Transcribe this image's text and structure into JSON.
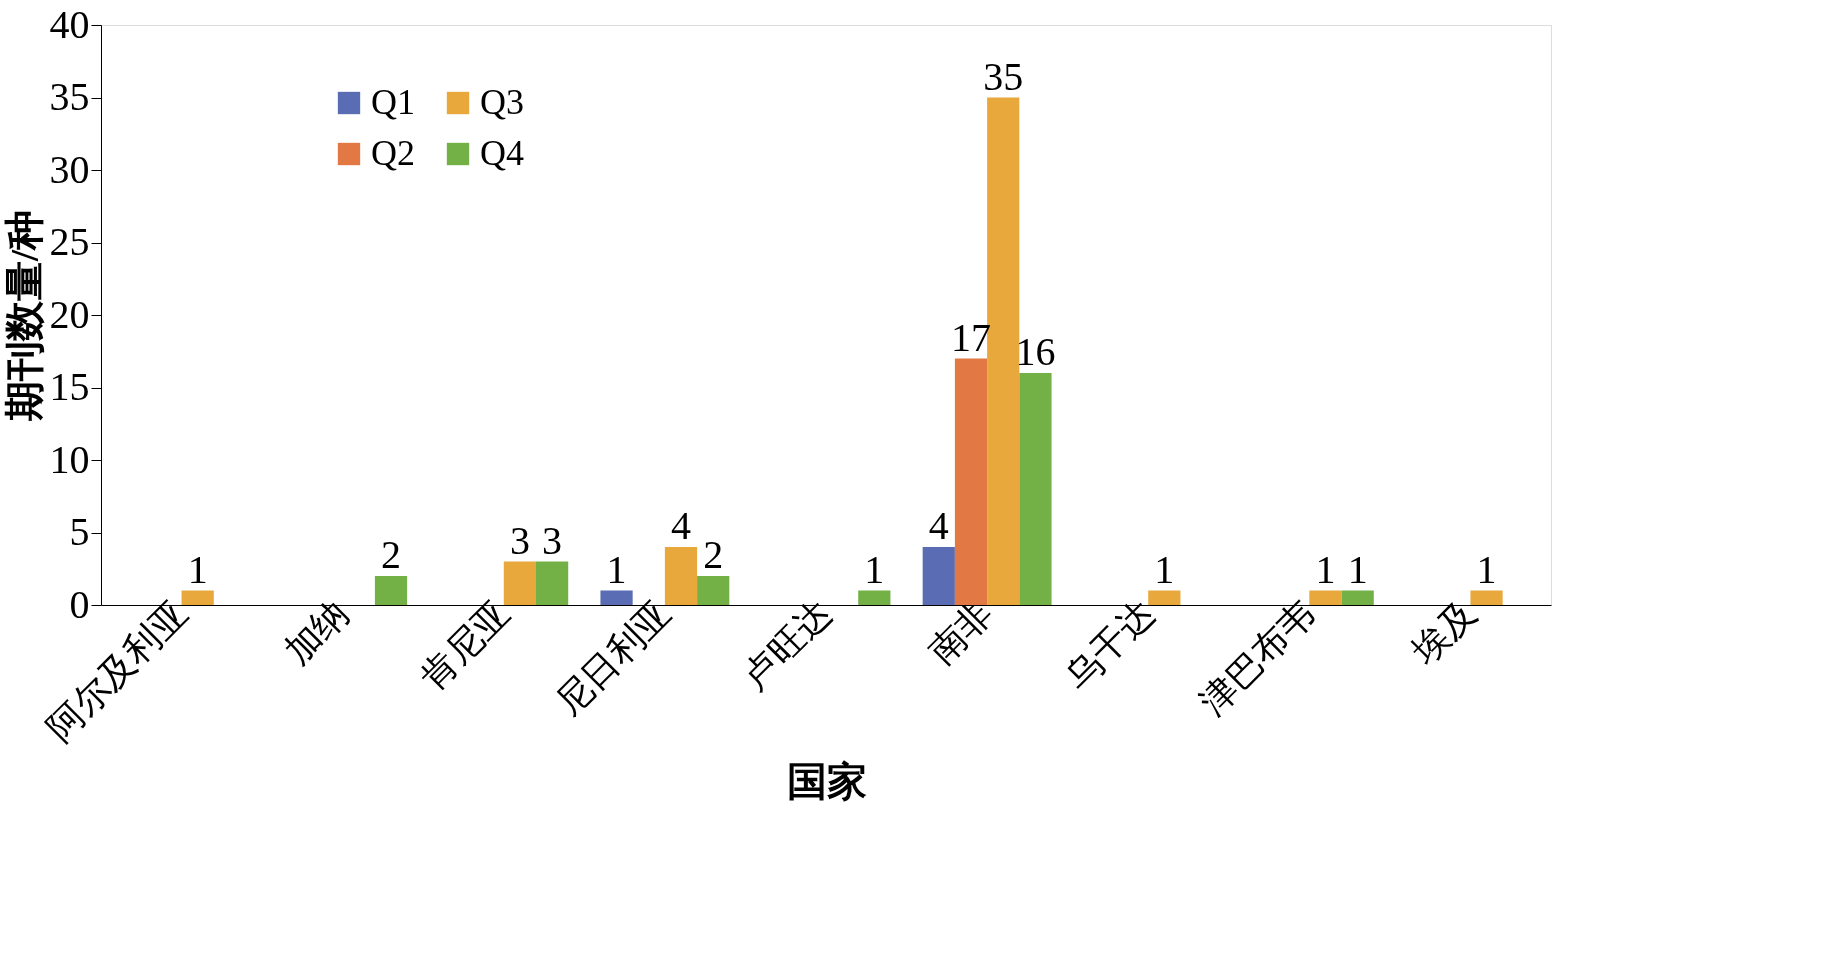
{
  "chart_data": {
    "type": "bar",
    "xlabel": "国家",
    "ylabel": "期刊数量/种",
    "categories": [
      "阿尔及利亚",
      "加纳",
      "肯尼亚",
      "尼日利亚",
      "卢旺达",
      "南非",
      "乌干达",
      "津巴布韦",
      "埃及"
    ],
    "series": [
      {
        "name": "Q1",
        "color": "#5a6cb3",
        "values": [
          null,
          null,
          null,
          1,
          null,
          4,
          null,
          null,
          null
        ]
      },
      {
        "name": "Q2",
        "color": "#e27843",
        "values": [
          null,
          null,
          null,
          null,
          null,
          17,
          null,
          null,
          null
        ]
      },
      {
        "name": "Q3",
        "color": "#e8a83c",
        "values": [
          1,
          null,
          3,
          4,
          null,
          35,
          1,
          1,
          1
        ]
      },
      {
        "name": "Q4",
        "color": "#73b146",
        "values": [
          null,
          2,
          3,
          2,
          1,
          16,
          null,
          1,
          null
        ]
      }
    ],
    "ylim": [
      0,
      40
    ],
    "yticks": [
      0,
      5,
      10,
      15,
      20,
      25,
      30,
      35,
      40
    ],
    "grid": false,
    "legend": "top left",
    "data_labels": true
  }
}
